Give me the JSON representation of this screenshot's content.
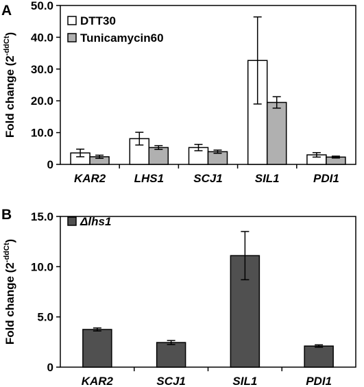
{
  "chart_data": [
    {
      "type": "bar",
      "panel_label": "A",
      "ylabel": "Fold change (2",
      "ylabel_sup": "-ddCt",
      "ylabel_end": ")",
      "ylim": [
        0,
        50
      ],
      "yticks": [
        0,
        10,
        20,
        30,
        40,
        50
      ],
      "ytick_labels": [
        "0",
        "10.0",
        "20.0",
        "30.0",
        "40.0",
        "50.0"
      ],
      "categories": [
        "KAR2",
        "LHS1",
        "SCJ1",
        "SIL1",
        "PDI1"
      ],
      "legend_position": "top-left",
      "grid": false,
      "series": [
        {
          "name": "DTT30",
          "color": "#ffffff",
          "values": [
            3.6,
            8.1,
            5.3,
            32.7,
            3.0
          ],
          "errors": [
            1.2,
            2.0,
            1.0,
            13.7,
            0.7
          ]
        },
        {
          "name": "Tunicamycin60",
          "color": "#b0b0b0",
          "values": [
            2.4,
            5.3,
            4.0,
            19.5,
            2.3
          ],
          "errors": [
            0.5,
            0.6,
            0.5,
            1.8,
            0.3
          ]
        }
      ]
    },
    {
      "type": "bar",
      "panel_label": "B",
      "ylabel": "Fold change (2",
      "ylabel_sup": "-ddCt",
      "ylabel_end": ")",
      "ylim": [
        0,
        15
      ],
      "yticks": [
        0,
        5,
        10,
        15
      ],
      "ytick_labels": [
        "0",
        "5.0",
        "10.0",
        "15.0"
      ],
      "categories": [
        "KAR2",
        "SCJ1",
        "SIL1",
        "PDI1"
      ],
      "legend_position": "top-left",
      "grid": false,
      "series": [
        {
          "name": "Δlhs1",
          "color": "#505050",
          "values": [
            3.75,
            2.45,
            11.1,
            2.1
          ],
          "errors": [
            0.15,
            0.2,
            2.4,
            0.12
          ]
        }
      ]
    }
  ]
}
